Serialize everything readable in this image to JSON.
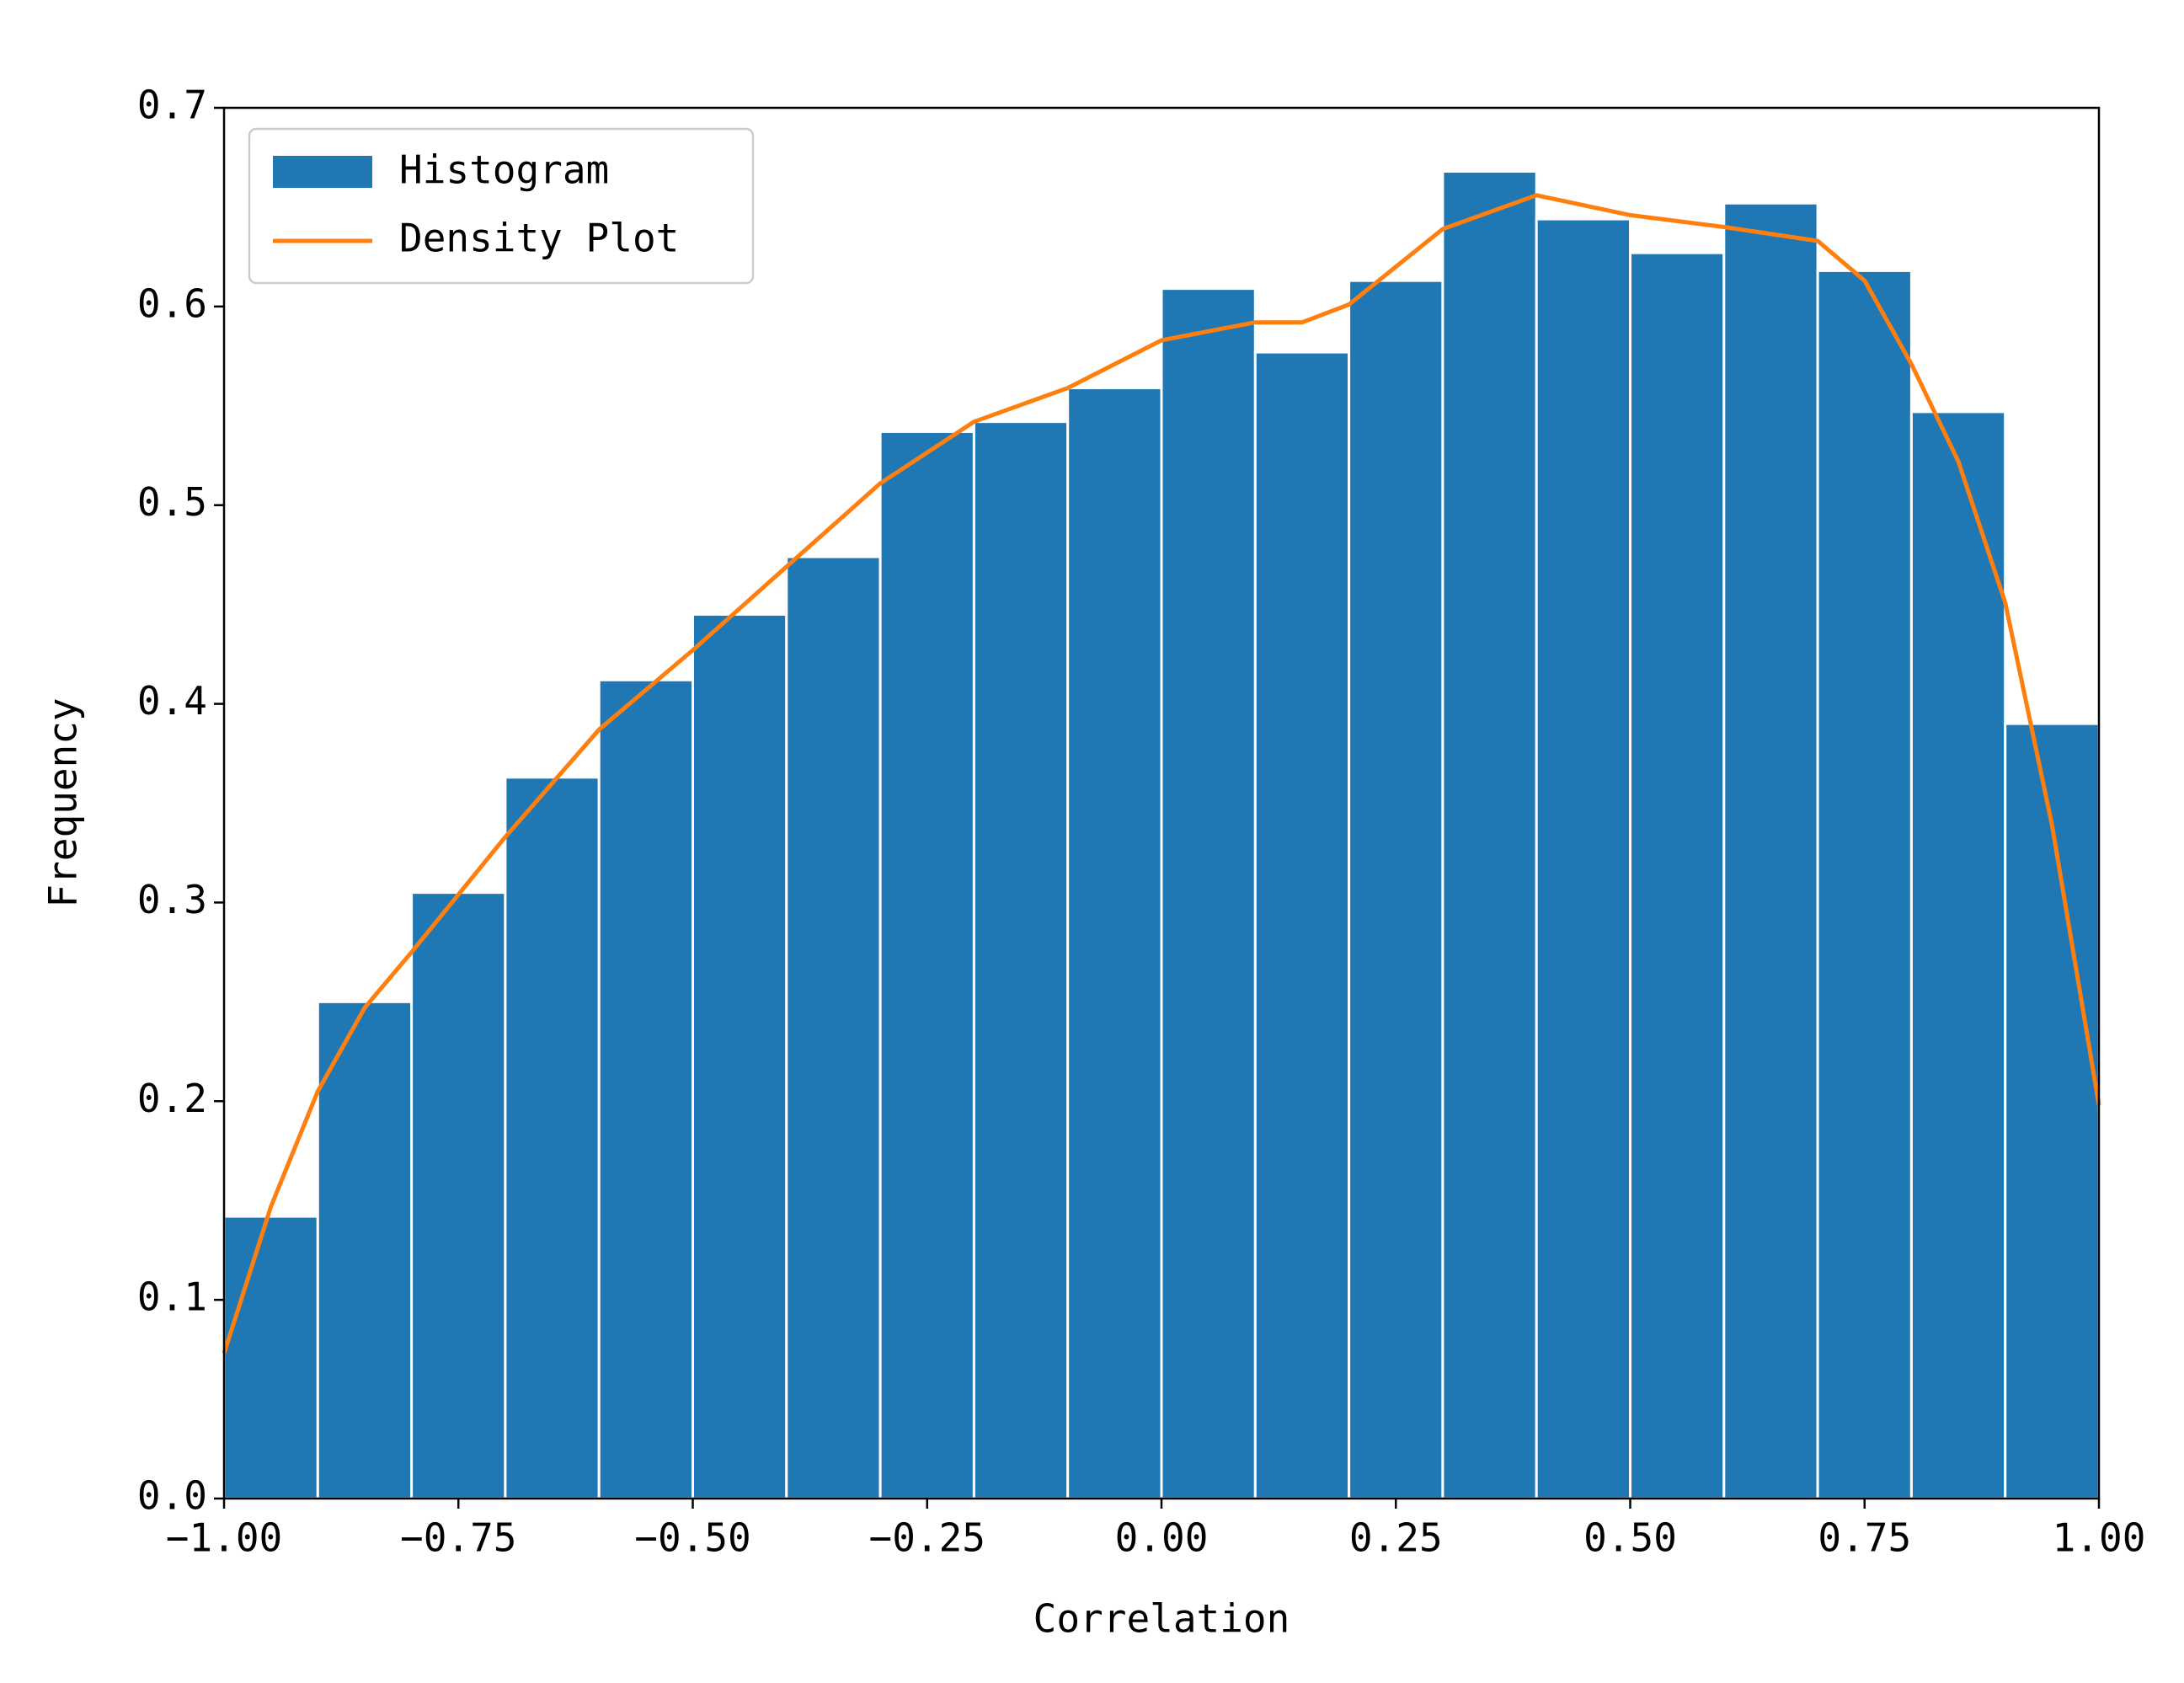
{
  "chart_data": {
    "type": "histogram",
    "xlabel": "Correlation",
    "ylabel": "Frequency",
    "name": "Histogram",
    "color": "#1f77b4",
    "bins": [
      -1.0,
      -0.9,
      -0.8,
      -0.7,
      -0.6,
      -0.5,
      -0.4,
      -0.3,
      -0.2,
      -0.1,
      0.0,
      0.1,
      0.2,
      0.3,
      0.4,
      0.5,
      0.6,
      0.7,
      0.8,
      0.9,
      1.0
    ],
    "values": [
      0.142,
      0.25,
      0.305,
      0.363,
      0.412,
      0.445,
      0.474,
      0.537,
      0.542,
      0.559,
      0.609,
      0.577,
      0.613,
      0.668,
      0.644,
      0.627,
      0.652,
      0.618,
      0.547,
      0.39
    ],
    "density": {
      "name": "Density Plot",
      "color": "#ff7f0e",
      "x": [
        -1.0,
        -0.95,
        -0.9,
        -0.85,
        -0.8,
        -0.7,
        -0.6,
        -0.5,
        -0.4,
        -0.3,
        -0.2,
        -0.1,
        0.0,
        0.1,
        0.15,
        0.2,
        0.3,
        0.4,
        0.5,
        0.6,
        0.7,
        0.75,
        0.8,
        0.85,
        0.9,
        0.95,
        1.0
      ],
      "values": [
        0.073,
        0.147,
        0.205,
        0.247,
        0.275,
        0.333,
        0.387,
        0.427,
        0.469,
        0.511,
        0.542,
        0.559,
        0.583,
        0.592,
        0.592,
        0.601,
        0.639,
        0.656,
        0.646,
        0.64,
        0.633,
        0.613,
        0.571,
        0.522,
        0.451,
        0.339,
        0.198
      ]
    },
    "xlim": [
      -1.0,
      1.0
    ],
    "ylim": [
      0.0,
      0.7
    ],
    "xticks": [
      {
        "value": -1.0,
        "label": "−1.00"
      },
      {
        "value": -0.75,
        "label": "−0.75"
      },
      {
        "value": -0.5,
        "label": "−0.50"
      },
      {
        "value": -0.25,
        "label": "−0.25"
      },
      {
        "value": 0.0,
        "label": "0.00"
      },
      {
        "value": 0.25,
        "label": "0.25"
      },
      {
        "value": 0.5,
        "label": "0.50"
      },
      {
        "value": 0.75,
        "label": "0.75"
      },
      {
        "value": 1.0,
        "label": "1.00"
      }
    ],
    "yticks": [
      {
        "value": 0.0,
        "label": "0.0"
      },
      0.1,
      0.2,
      0.3,
      0.4,
      0.5,
      0.6,
      0.7
    ],
    "legend": "upper left"
  }
}
